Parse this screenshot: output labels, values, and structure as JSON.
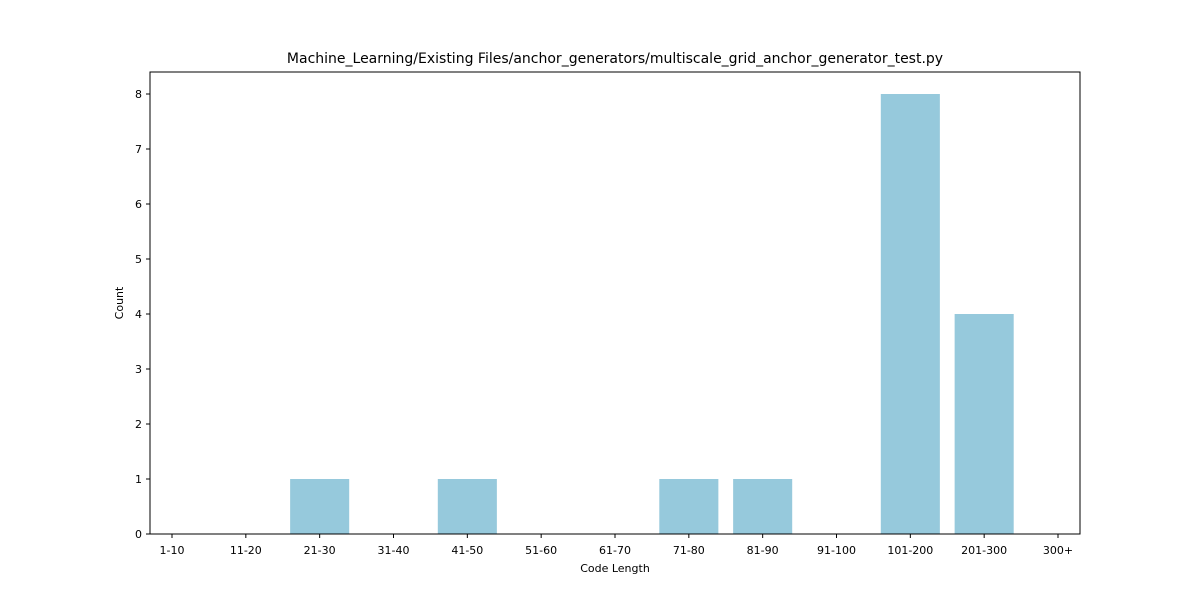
{
  "chart_data": {
    "type": "bar",
    "title": "Machine_Learning/Existing Files/anchor_generators/multiscale_grid_anchor_generator_test.py",
    "xlabel": "Code Length",
    "ylabel": "Count",
    "categories": [
      "1-10",
      "11-20",
      "21-30",
      "31-40",
      "41-50",
      "51-60",
      "61-70",
      "71-80",
      "81-90",
      "91-100",
      "101-200",
      "201-300",
      "300+"
    ],
    "values": [
      0,
      0,
      1,
      0,
      1,
      0,
      0,
      1,
      1,
      0,
      8,
      4,
      0
    ],
    "ylim": [
      0,
      8.4
    ],
    "yticks": [
      0,
      1,
      2,
      3,
      4,
      5,
      6,
      7,
      8
    ],
    "bar_color": "#96c9dc",
    "grid": false,
    "legend": "none"
  }
}
